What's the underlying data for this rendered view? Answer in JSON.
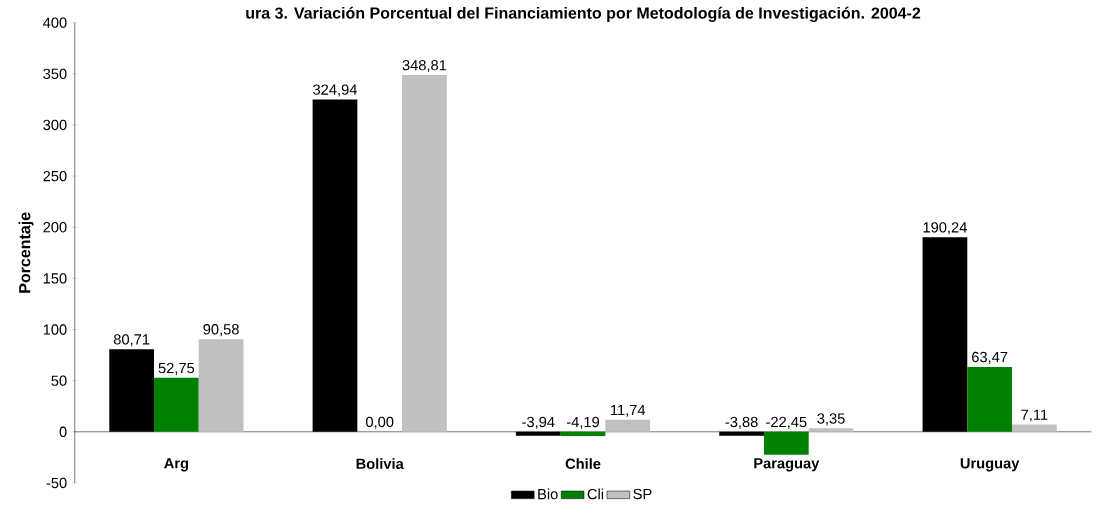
{
  "chart_data": {
    "type": "bar",
    "title": "ura 3. Variación Porcentual del Financiamiento por Metodología de Investigación. 2004-2",
    "ylabel": "Porcentaje",
    "categories": [
      "Arg",
      "Bolivia",
      "Chile",
      "Paraguay",
      "Uruguay"
    ],
    "series": [
      {
        "name": "Bio",
        "color": "#000000",
        "values": [
          80.71,
          324.94,
          -3.94,
          -3.88,
          190.24
        ],
        "value_labels": [
          "80,71",
          "324,94",
          "-3,94",
          "-3,88",
          "190,24"
        ]
      },
      {
        "name": "Cli",
        "color": "#008000",
        "values": [
          52.75,
          0.0,
          -4.19,
          -22.45,
          63.47
        ],
        "value_labels": [
          "52,75",
          "0,00",
          "-4,19",
          "-22,45",
          "63,47"
        ]
      },
      {
        "name": "SP",
        "color": "#c0c0c0",
        "values": [
          90.58,
          348.81,
          11.74,
          3.35,
          7.11
        ],
        "value_labels": [
          "90,58",
          "348,81",
          "11,74",
          "3,35",
          "7,11"
        ]
      }
    ],
    "ylim": [
      -50,
      400
    ],
    "yticks": [
      -50,
      0,
      50,
      100,
      150,
      200,
      250,
      300,
      350,
      400
    ],
    "grid": false,
    "legend": "bottom"
  }
}
